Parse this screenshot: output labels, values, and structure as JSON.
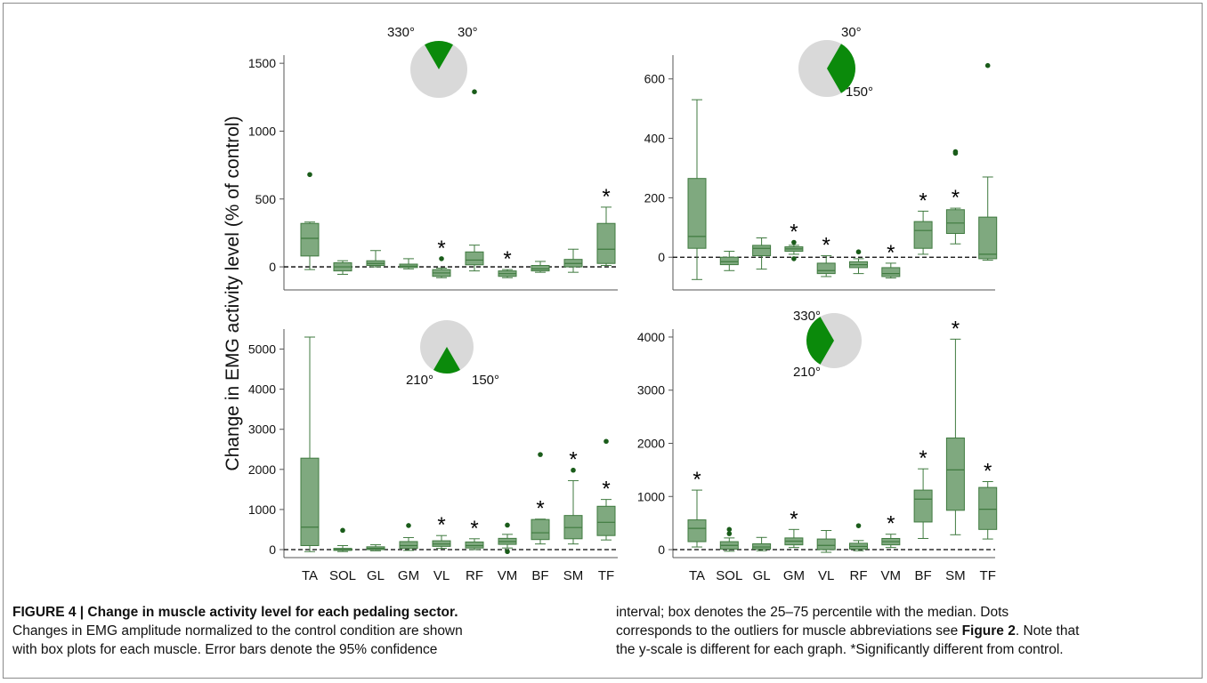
{
  "figure": {
    "y_axis_label": "Change in EMG activity level (% of control)",
    "muscles": [
      "TA",
      "SOL",
      "GL",
      "GM",
      "VL",
      "RF",
      "VM",
      "BF",
      "SM",
      "TF"
    ],
    "colors": {
      "box": "#7fa97f",
      "stroke": "#3f7a3f",
      "outlier": "#1a5c1a",
      "sector": "#0b8a0b",
      "pie_bg": "#d9d9d9"
    }
  },
  "caption": {
    "title": "FIGURE 4 | Change in muscle activity level for each pedaling sector.",
    "line1": "Changes in EMG amplitude normalized to the control condition are shown",
    "line2": "with box plots for each muscle. Error bars denote the 95% confidence",
    "line3": "interval; box denotes the 25–75 percentile with the median. Dots",
    "line4a": "corresponds to the outliers for muscle abbreviations see ",
    "line4b": "Figure 2",
    "line4c": ". Note that",
    "line5": "the y-scale is different for each graph. *Significantly different from control."
  },
  "chart_data": [
    {
      "type": "box",
      "panel": "top-left",
      "sector_labels": [
        "330°",
        "30°"
      ],
      "ylim": [
        -170,
        1560
      ],
      "yticks": [
        0,
        500,
        1000,
        1500
      ],
      "categories": [
        "TA",
        "SOL",
        "GL",
        "GM",
        "VL",
        "RF",
        "VM",
        "BF",
        "SM",
        "TF"
      ],
      "boxes": [
        {
          "muscle": "TA",
          "wlo": -20,
          "q1": 80,
          "median": 210,
          "q3": 320,
          "whi": 330,
          "outliers": [
            680
          ],
          "sig": false
        },
        {
          "muscle": "SOL",
          "wlo": -55,
          "q1": -30,
          "median": 0,
          "q3": 30,
          "whi": 45,
          "outliers": [],
          "sig": false
        },
        {
          "muscle": "GL",
          "wlo": 0,
          "q1": 10,
          "median": 25,
          "q3": 45,
          "whi": 120,
          "outliers": [],
          "sig": false
        },
        {
          "muscle": "GM",
          "wlo": -15,
          "q1": -5,
          "median": 5,
          "q3": 20,
          "whi": 60,
          "outliers": [],
          "sig": false
        },
        {
          "muscle": "VL",
          "wlo": -80,
          "q1": -70,
          "median": -45,
          "q3": -20,
          "whi": -10,
          "outliers": [
            60
          ],
          "sig": true
        },
        {
          "muscle": "RF",
          "wlo": -30,
          "q1": 15,
          "median": 50,
          "q3": 110,
          "whi": 160,
          "outliers": [
            1290
          ],
          "sig": false
        },
        {
          "muscle": "VM",
          "wlo": -80,
          "q1": -70,
          "median": -50,
          "q3": -30,
          "whi": -20,
          "outliers": [],
          "sig": true
        },
        {
          "muscle": "BF",
          "wlo": -40,
          "q1": -30,
          "median": -15,
          "q3": 10,
          "whi": 40,
          "outliers": [],
          "sig": false
        },
        {
          "muscle": "SM",
          "wlo": -40,
          "q1": 0,
          "median": 25,
          "q3": 55,
          "whi": 130,
          "outliers": [],
          "sig": false
        },
        {
          "muscle": "TF",
          "wlo": 10,
          "q1": 25,
          "median": 130,
          "q3": 320,
          "whi": 440,
          "outliers": [],
          "sig": true
        }
      ]
    },
    {
      "type": "box",
      "panel": "top-right",
      "sector_labels": [
        "30°",
        "150°"
      ],
      "ylim": [
        -110,
        680
      ],
      "yticks": [
        0,
        200,
        400,
        600
      ],
      "categories": [
        "TA",
        "SOL",
        "GL",
        "GM",
        "VL",
        "RF",
        "VM",
        "BF",
        "SM",
        "TF"
      ],
      "boxes": [
        {
          "muscle": "TA",
          "wlo": -75,
          "q1": 30,
          "median": 70,
          "q3": 265,
          "whi": 530,
          "outliers": [],
          "sig": false
        },
        {
          "muscle": "SOL",
          "wlo": -45,
          "q1": -25,
          "median": -15,
          "q3": 0,
          "whi": 20,
          "outliers": [],
          "sig": false
        },
        {
          "muscle": "GL",
          "wlo": -40,
          "q1": 5,
          "median": 30,
          "q3": 40,
          "whi": 65,
          "outliers": [],
          "sig": false
        },
        {
          "muscle": "GM",
          "wlo": 10,
          "q1": 20,
          "median": 28,
          "q3": 35,
          "whi": 40,
          "outliers": [
            50,
            -5
          ],
          "sig": true
        },
        {
          "muscle": "VL",
          "wlo": -65,
          "q1": -55,
          "median": -45,
          "q3": -20,
          "whi": 5,
          "outliers": [],
          "sig": true
        },
        {
          "muscle": "RF",
          "wlo": -55,
          "q1": -35,
          "median": -25,
          "q3": -15,
          "whi": -5,
          "outliers": [
            18
          ],
          "sig": false
        },
        {
          "muscle": "VM",
          "wlo": -70,
          "q1": -65,
          "median": -55,
          "q3": -35,
          "whi": -20,
          "outliers": [],
          "sig": true
        },
        {
          "muscle": "BF",
          "wlo": 10,
          "q1": 30,
          "median": 90,
          "q3": 120,
          "whi": 155,
          "outliers": [],
          "sig": true
        },
        {
          "muscle": "SM",
          "wlo": 45,
          "q1": 80,
          "median": 115,
          "q3": 160,
          "whi": 165,
          "outliers": [
            350,
            355
          ],
          "sig": true
        },
        {
          "muscle": "TF",
          "wlo": -10,
          "q1": -5,
          "median": 10,
          "q3": 135,
          "whi": 270,
          "outliers": [
            645
          ],
          "sig": false
        }
      ]
    },
    {
      "type": "box",
      "panel": "bottom-left",
      "sector_labels": [
        "210°",
        "150°"
      ],
      "ylim": [
        -200,
        5500
      ],
      "yticks": [
        0,
        1000,
        2000,
        3000,
        4000,
        5000
      ],
      "categories": [
        "TA",
        "SOL",
        "GL",
        "GM",
        "VL",
        "RF",
        "VM",
        "BF",
        "SM",
        "TF"
      ],
      "boxes": [
        {
          "muscle": "TA",
          "wlo": -50,
          "q1": 100,
          "median": 560,
          "q3": 2280,
          "whi": 5300,
          "outliers": [],
          "sig": false
        },
        {
          "muscle": "SOL",
          "wlo": -50,
          "q1": -20,
          "median": 0,
          "q3": 30,
          "whi": 100,
          "outliers": [
            480
          ],
          "sig": false
        },
        {
          "muscle": "GL",
          "wlo": -30,
          "q1": 0,
          "median": 30,
          "q3": 70,
          "whi": 120,
          "outliers": [],
          "sig": false
        },
        {
          "muscle": "GM",
          "wlo": -20,
          "q1": 30,
          "median": 100,
          "q3": 200,
          "whi": 300,
          "outliers": [
            600
          ],
          "sig": false
        },
        {
          "muscle": "VL",
          "wlo": 30,
          "q1": 80,
          "median": 140,
          "q3": 220,
          "whi": 350,
          "outliers": [],
          "sig": true
        },
        {
          "muscle": "RF",
          "wlo": 0,
          "q1": 40,
          "median": 100,
          "q3": 190,
          "whi": 270,
          "outliers": [],
          "sig": true
        },
        {
          "muscle": "VM",
          "wlo": 40,
          "q1": 130,
          "median": 200,
          "q3": 280,
          "whi": 380,
          "outliers": [
            610,
            -50
          ],
          "sig": false
        },
        {
          "muscle": "BF",
          "wlo": 140,
          "q1": 250,
          "median": 420,
          "q3": 750,
          "whi": 760,
          "outliers": [
            2370
          ],
          "sig": true
        },
        {
          "muscle": "SM",
          "wlo": 140,
          "q1": 270,
          "median": 550,
          "q3": 850,
          "whi": 1720,
          "outliers": [
            1980
          ],
          "sig": true
        },
        {
          "muscle": "TF",
          "wlo": 240,
          "q1": 350,
          "median": 680,
          "q3": 1080,
          "whi": 1250,
          "outliers": [
            2700
          ],
          "sig": true
        }
      ]
    },
    {
      "type": "box",
      "panel": "bottom-right",
      "sector_labels": [
        "330°",
        "210°"
      ],
      "ylim": [
        -150,
        4150
      ],
      "yticks": [
        0,
        1000,
        2000,
        3000,
        4000
      ],
      "categories": [
        "TA",
        "SOL",
        "GL",
        "GM",
        "VL",
        "RF",
        "VM",
        "BF",
        "SM",
        "TF"
      ],
      "boxes": [
        {
          "muscle": "TA",
          "wlo": 50,
          "q1": 150,
          "median": 400,
          "q3": 560,
          "whi": 1120,
          "outliers": [],
          "sig": true
        },
        {
          "muscle": "SOL",
          "wlo": -30,
          "q1": 10,
          "median": 80,
          "q3": 150,
          "whi": 220,
          "outliers": [
            300,
            380
          ],
          "sig": false
        },
        {
          "muscle": "GL",
          "wlo": -20,
          "q1": 10,
          "median": 50,
          "q3": 110,
          "whi": 230,
          "outliers": [],
          "sig": false
        },
        {
          "muscle": "GM",
          "wlo": 40,
          "q1": 90,
          "median": 160,
          "q3": 220,
          "whi": 380,
          "outliers": [],
          "sig": true
        },
        {
          "muscle": "VL",
          "wlo": -50,
          "q1": 0,
          "median": 80,
          "q3": 200,
          "whi": 360,
          "outliers": [],
          "sig": false
        },
        {
          "muscle": "RF",
          "wlo": -20,
          "q1": 10,
          "median": 60,
          "q3": 120,
          "whi": 170,
          "outliers": [
            450
          ],
          "sig": false
        },
        {
          "muscle": "VM",
          "wlo": 40,
          "q1": 90,
          "median": 150,
          "q3": 210,
          "whi": 290,
          "outliers": [],
          "sig": true
        },
        {
          "muscle": "BF",
          "wlo": 210,
          "q1": 520,
          "median": 950,
          "q3": 1120,
          "whi": 1520,
          "outliers": [],
          "sig": true
        },
        {
          "muscle": "SM",
          "wlo": 280,
          "q1": 740,
          "median": 1500,
          "q3": 2100,
          "whi": 3960,
          "outliers": [],
          "sig": true
        },
        {
          "muscle": "TF",
          "wlo": 200,
          "q1": 380,
          "median": 760,
          "q3": 1170,
          "whi": 1280,
          "outliers": [],
          "sig": true
        }
      ]
    }
  ]
}
